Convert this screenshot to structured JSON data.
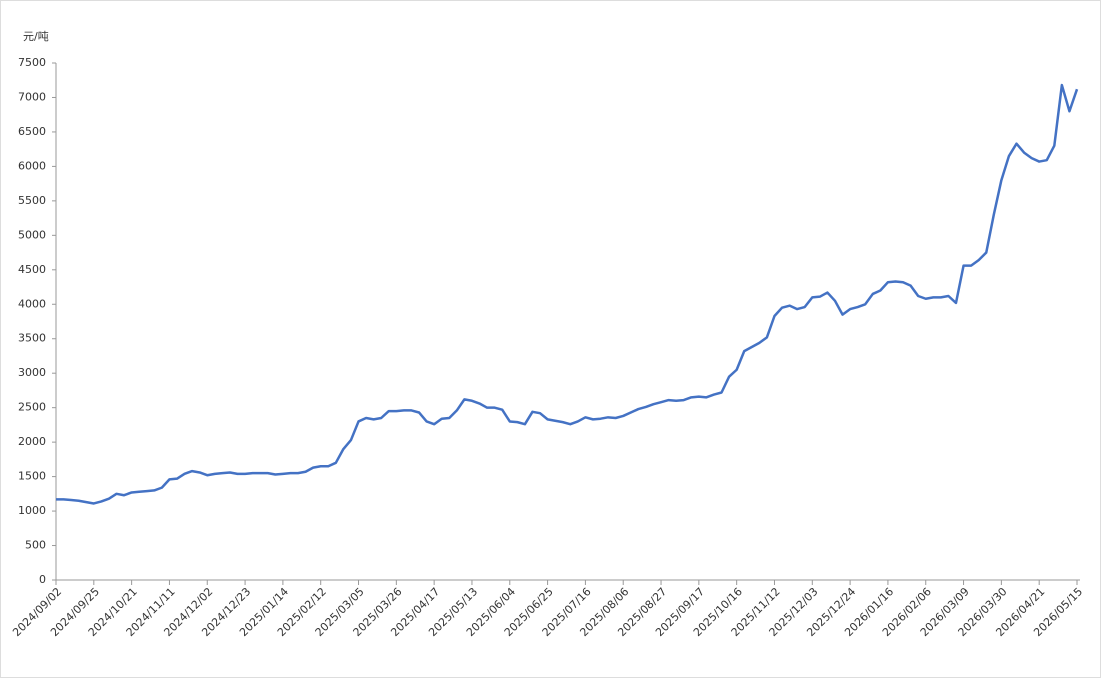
{
  "chart_data": {
    "type": "line",
    "y_unit": "元/吨",
    "color": "#4472c4",
    "categories": [
      "2024/09/02",
      null,
      null,
      null,
      null,
      "2024/09/25",
      null,
      null,
      null,
      null,
      "2024/10/21",
      null,
      null,
      null,
      null,
      "2024/11/11",
      null,
      null,
      null,
      null,
      "2024/12/02",
      null,
      null,
      null,
      null,
      "2024/12/23",
      null,
      null,
      null,
      null,
      "2025/01/14",
      null,
      null,
      null,
      null,
      "2025/02/12",
      null,
      null,
      null,
      null,
      "2025/03/05",
      null,
      null,
      null,
      null,
      "2025/03/26",
      null,
      null,
      null,
      null,
      "2025/04/17",
      null,
      null,
      null,
      null,
      "2025/05/13",
      null,
      null,
      null,
      null,
      "2025/06/04",
      null,
      null,
      null,
      null,
      "2025/06/25",
      null,
      null,
      null,
      null,
      "2025/07/16",
      null,
      null,
      null,
      null,
      "2025/08/06",
      null,
      null,
      null,
      null,
      "2025/08/27",
      null,
      null,
      null,
      null,
      "2025/09/17",
      null,
      null,
      null,
      null,
      "2025/10/16",
      null,
      null,
      null,
      null,
      "2025/11/12",
      null,
      null,
      null,
      null,
      "2025/12/03",
      null,
      null,
      null,
      null,
      "2025/12/24",
      null,
      null,
      null,
      null,
      "2026/01/16",
      null,
      null,
      null,
      null,
      "2026/02/06",
      null,
      null,
      null,
      null,
      "2026/03/09",
      null,
      null,
      null,
      null,
      "2026/03/30",
      null,
      null,
      null,
      null,
      "2026/04/21",
      null,
      null,
      null,
      null,
      "2026/05/15"
    ],
    "values": [
      1170,
      1170,
      1160,
      1150,
      1130,
      1110,
      1140,
      1180,
      1250,
      1230,
      1270,
      1280,
      1290,
      1300,
      1340,
      1460,
      1470,
      1540,
      1580,
      1560,
      1520,
      1540,
      1550,
      1560,
      1540,
      1540,
      1550,
      1550,
      1550,
      1530,
      1540,
      1550,
      1550,
      1570,
      1630,
      1650,
      1650,
      1700,
      1900,
      2030,
      2300,
      2350,
      2330,
      2350,
      2450,
      2450,
      2460,
      2460,
      2430,
      2300,
      2260,
      2340,
      2350,
      2460,
      2620,
      2600,
      2560,
      2500,
      2500,
      2470,
      2300,
      2290,
      2260,
      2440,
      2420,
      2330,
      2310,
      2290,
      2260,
      2300,
      2360,
      2330,
      2340,
      2360,
      2350,
      2380,
      2430,
      2480,
      2510,
      2550,
      2580,
      2610,
      2600,
      2610,
      2650,
      2660,
      2650,
      2690,
      2720,
      2950,
      3050,
      3320,
      3380,
      3440,
      3520,
      3830,
      3950,
      3980,
      3930,
      3960,
      4100,
      4110,
      4170,
      4050,
      3850,
      3930,
      3960,
      4000,
      4150,
      4200,
      4320,
      4330,
      4320,
      4270,
      4120,
      4080,
      4100,
      4100,
      4120,
      4020,
      4560,
      4560,
      4640,
      4750,
      5300,
      5800,
      6150,
      6330,
      6200,
      6120,
      6070,
      6090,
      6300,
      7180,
      6800,
      7120
    ],
    "ylim": [
      0,
      7500
    ],
    "yticks": [
      0,
      500,
      1000,
      1500,
      2000,
      2500,
      3000,
      3500,
      4000,
      4500,
      5000,
      5500,
      6000,
      6500,
      7000,
      7500
    ]
  }
}
